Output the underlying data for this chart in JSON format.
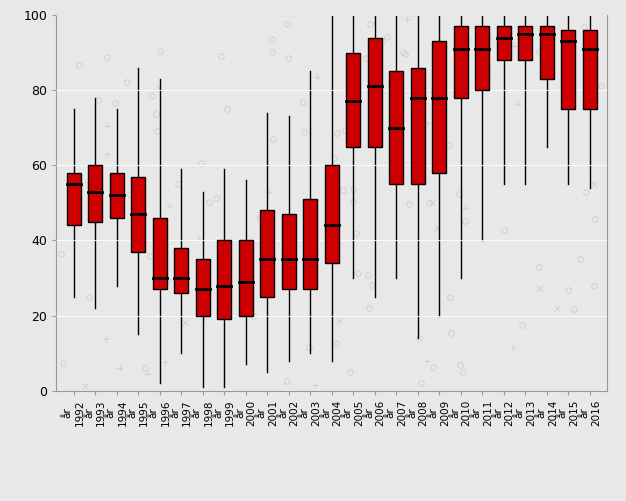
{
  "years": [
    "år\n1992",
    "år\n1993",
    "år\n1994",
    "år\n1995",
    "år\n1996",
    "år\n1997",
    "år\n1998",
    "år\n1999",
    "år\n2000",
    "år\n2001",
    "år\n2002",
    "år\n2003",
    "år\n2004",
    "år\n2005",
    "år\n2006",
    "år\n2007",
    "år\n2008",
    "år\n2009",
    "år\n2010",
    "år\n2011",
    "år\n2012",
    "år\n2013",
    "år\n2014",
    "år\n2015",
    "år\n2016"
  ],
  "boxes": [
    {
      "whislo": 25,
      "q1": 44,
      "med": 55,
      "q3": 58,
      "whishi": 75
    },
    {
      "whislo": 22,
      "q1": 45,
      "med": 53,
      "q3": 60,
      "whishi": 78
    },
    {
      "whislo": 28,
      "q1": 46,
      "med": 52,
      "q3": 58,
      "whishi": 75
    },
    {
      "whislo": 15,
      "q1": 37,
      "med": 47,
      "q3": 57,
      "whishi": 86
    },
    {
      "whislo": 2,
      "q1": 27,
      "med": 30,
      "q3": 46,
      "whishi": 83
    },
    {
      "whislo": 10,
      "q1": 26,
      "med": 30,
      "q3": 38,
      "whishi": 59
    },
    {
      "whislo": 1,
      "q1": 20,
      "med": 27,
      "q3": 35,
      "whishi": 53
    },
    {
      "whislo": 1,
      "q1": 19,
      "med": 28,
      "q3": 40,
      "whishi": 59
    },
    {
      "whislo": 7,
      "q1": 20,
      "med": 29,
      "q3": 40,
      "whishi": 56
    },
    {
      "whislo": 5,
      "q1": 25,
      "med": 35,
      "q3": 48,
      "whishi": 74
    },
    {
      "whislo": 8,
      "q1": 27,
      "med": 35,
      "q3": 47,
      "whishi": 73
    },
    {
      "whislo": 10,
      "q1": 27,
      "med": 35,
      "q3": 51,
      "whishi": 85
    },
    {
      "whislo": 8,
      "q1": 34,
      "med": 44,
      "q3": 60,
      "whishi": 100
    },
    {
      "whislo": 30,
      "q1": 65,
      "med": 77,
      "q3": 90,
      "whishi": 100
    },
    {
      "whislo": 25,
      "q1": 65,
      "med": 81,
      "q3": 94,
      "whishi": 100
    },
    {
      "whislo": 30,
      "q1": 55,
      "med": 70,
      "q3": 85,
      "whishi": 100
    },
    {
      "whislo": 14,
      "q1": 55,
      "med": 78,
      "q3": 86,
      "whishi": 100
    },
    {
      "whislo": 20,
      "q1": 58,
      "med": 78,
      "q3": 93,
      "whishi": 100
    },
    {
      "whislo": 30,
      "q1": 78,
      "med": 91,
      "q3": 97,
      "whishi": 100
    },
    {
      "whislo": 40,
      "q1": 80,
      "med": 91,
      "q3": 97,
      "whishi": 100
    },
    {
      "whislo": 55,
      "q1": 88,
      "med": 94,
      "q3": 97,
      "whishi": 100
    },
    {
      "whislo": 55,
      "q1": 88,
      "med": 95,
      "q3": 97,
      "whishi": 100
    },
    {
      "whislo": 65,
      "q1": 83,
      "med": 95,
      "q3": 97,
      "whishi": 100
    },
    {
      "whislo": 55,
      "q1": 75,
      "med": 93,
      "q3": 96,
      "whishi": 100
    },
    {
      "whislo": 54,
      "q1": 75,
      "med": 91,
      "q3": 96,
      "whishi": 100
    }
  ],
  "box_color": "#CC0000",
  "median_color": "#000000",
  "whisker_color": "#000000",
  "background_color": "#E8E8E8",
  "plot_bg_color": "#E8E8E8",
  "ylim": [
    0,
    100
  ],
  "yticks": [
    0,
    20,
    40,
    60,
    80,
    100
  ],
  "scatter_symbols": [
    "o",
    "o",
    "o",
    "+",
    "x",
    "o"
  ],
  "scatter_color": "#C0C0C0"
}
